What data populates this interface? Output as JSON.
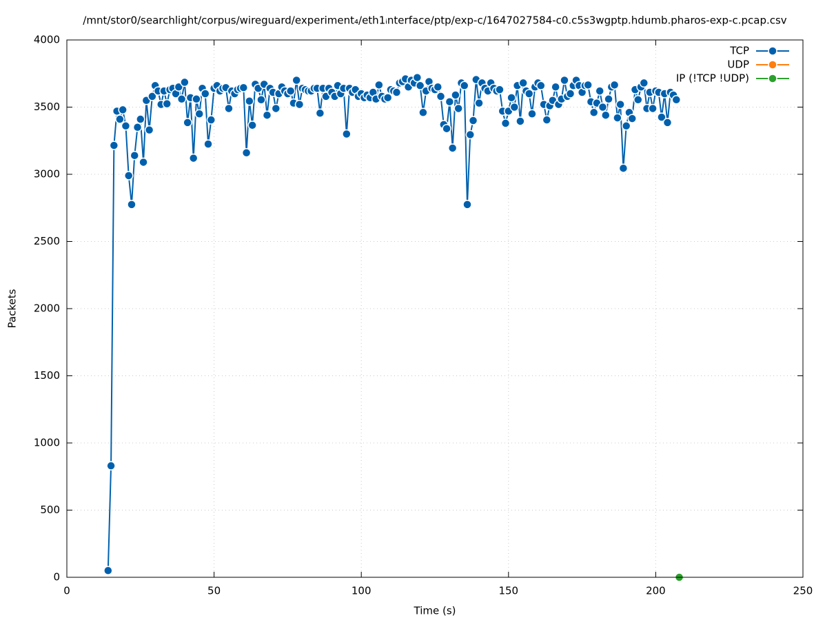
{
  "chart_data": {
    "type": "line",
    "title": "/mnt/stor0/searchlight/corpus/wireguard/experiment₄/eth1ᵢnterface/ptp/exp-c/1647027584-c0.c5s3wgptp.hdumb.pharos-exp-c.pcap.csv",
    "x_label": "Time (s)",
    "y_label": "Packets",
    "xlim": [
      0,
      250
    ],
    "xticks": [
      0,
      50,
      100,
      150,
      200,
      250
    ],
    "ylim": [
      0,
      4000
    ],
    "yticks": [
      0,
      500,
      1000,
      1500,
      2000,
      2500,
      3000,
      3500,
      4000
    ],
    "grid": true,
    "legend": "top right",
    "series": [
      {
        "name": "TCP",
        "color": "#0060ad",
        "x": [
          14,
          15,
          16,
          17,
          18,
          19,
          20,
          21,
          22,
          23,
          24,
          25,
          26,
          27,
          28,
          29,
          30,
          31,
          32,
          33,
          34,
          35,
          36,
          37,
          38,
          39,
          40,
          41,
          42,
          43,
          44,
          45,
          46,
          47,
          48,
          49,
          50,
          51,
          52,
          53,
          54,
          55,
          56,
          57,
          58,
          59,
          60,
          61,
          62,
          63,
          64,
          65,
          66,
          67,
          68,
          69,
          70,
          71,
          72,
          73,
          74,
          75,
          76,
          77,
          78,
          79,
          80,
          81,
          82,
          83,
          84,
          85,
          86,
          87,
          88,
          89,
          90,
          91,
          92,
          93,
          94,
          95,
          96,
          97,
          98,
          99,
          100,
          101,
          102,
          103,
          104,
          105,
          106,
          107,
          108,
          109,
          110,
          111,
          112,
          113,
          114,
          115,
          116,
          117,
          118,
          119,
          120,
          121,
          122,
          123,
          124,
          125,
          126,
          127,
          128,
          129,
          130,
          131,
          132,
          133,
          134,
          135,
          136,
          137,
          138,
          139,
          140,
          141,
          142,
          143,
          144,
          145,
          146,
          147,
          148,
          149,
          150,
          151,
          152,
          153,
          154,
          155,
          156,
          157,
          158,
          159,
          160,
          161,
          162,
          163,
          164,
          165,
          166,
          167,
          168,
          169,
          170,
          171,
          172,
          173,
          174,
          175,
          176,
          177,
          178,
          179,
          180,
          181,
          182,
          183,
          184,
          185,
          186,
          187,
          188,
          189,
          190,
          191,
          192,
          193,
          194,
          195,
          196,
          197,
          198,
          199,
          200,
          201,
          202,
          203,
          204,
          205,
          206,
          207
        ],
        "values": [
          50,
          830,
          3215,
          3470,
          3410,
          3480,
          3360,
          2990,
          2775,
          3140,
          3350,
          3410,
          3090,
          3550,
          3330,
          3580,
          3660,
          3620,
          3520,
          3620,
          3525,
          3630,
          3640,
          3600,
          3650,
          3560,
          3685,
          3385,
          3570,
          3120,
          3560,
          3450,
          3640,
          3600,
          3225,
          3405,
          3640,
          3660,
          3620,
          3640,
          3645,
          3490,
          3620,
          3600,
          3630,
          3640,
          3645,
          3160,
          3545,
          3365,
          3670,
          3640,
          3555,
          3670,
          3440,
          3640,
          3610,
          3490,
          3600,
          3650,
          3620,
          3600,
          3620,
          3530,
          3700,
          3520,
          3640,
          3630,
          3620,
          3620,
          3640,
          3640,
          3455,
          3640,
          3580,
          3640,
          3610,
          3580,
          3660,
          3600,
          3640,
          3300,
          3640,
          3610,
          3630,
          3580,
          3600,
          3570,
          3590,
          3570,
          3610,
          3560,
          3665,
          3580,
          3560,
          3570,
          3630,
          3620,
          3610,
          3680,
          3690,
          3710,
          3650,
          3700,
          3680,
          3720,
          3660,
          3460,
          3620,
          3690,
          3640,
          3630,
          3650,
          3580,
          3370,
          3340,
          3540,
          3195,
          3590,
          3490,
          3680,
          3660,
          2775,
          3295,
          3400,
          3705,
          3530,
          3680,
          3640,
          3620,
          3680,
          3640,
          3620,
          3630,
          3470,
          3380,
          3470,
          3570,
          3500,
          3660,
          3395,
          3680,
          3620,
          3600,
          3450,
          3650,
          3680,
          3660,
          3520,
          3405,
          3510,
          3550,
          3650,
          3520,
          3560,
          3700,
          3580,
          3600,
          3660,
          3700,
          3660,
          3610,
          3660,
          3665,
          3540,
          3460,
          3530,
          3620,
          3500,
          3440,
          3560,
          3650,
          3665,
          3420,
          3520,
          3045,
          3360,
          3460,
          3415,
          3630,
          3555,
          3650,
          3680,
          3490,
          3610,
          3490,
          3620,
          3610,
          3425,
          3600,
          3385,
          3610,
          3590,
          3555
        ]
      },
      {
        "name": "UDP",
        "color": "#ff7f0e",
        "x": [],
        "values": []
      },
      {
        "name": "IP (!TCP  !UDP)",
        "color": "#2ca02c",
        "x": [
          208
        ],
        "values": [
          0
        ]
      }
    ]
  }
}
